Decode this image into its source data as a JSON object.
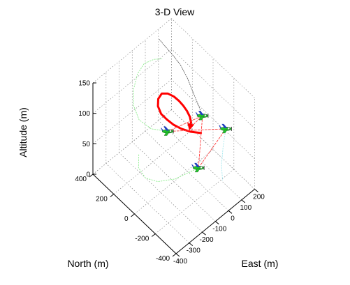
{
  "chart_data": {
    "type": "line",
    "title": "3-D View",
    "xlabel": "North (m)",
    "ylabel": "East (m)",
    "zlabel": "Altitude (m)",
    "xlim": [
      -400,
      400
    ],
    "ylim": [
      -400,
      200
    ],
    "zlim": [
      0,
      150
    ],
    "xticks": [
      "400",
      "200",
      "0",
      "-200",
      "-400"
    ],
    "xtick_values": [
      400,
      200,
      0,
      -200,
      -400
    ],
    "yticks": [
      "-400",
      "-300",
      "-200",
      "-100",
      "0",
      "100",
      "200"
    ],
    "ytick_values": [
      -400,
      -300,
      -200,
      -100,
      0,
      100,
      200
    ],
    "zticks": [
      "0",
      "50",
      "100",
      "150"
    ],
    "ztick_values": [
      0,
      50,
      100,
      150
    ],
    "grid": true,
    "colors": {
      "lead": "#ff0000",
      "formation": "#ff3b3b",
      "green_trail": "#90ee90",
      "black_trail": "#555555",
      "cyan_trail": "#a8e8ee",
      "aircraft_body": "#22c22c",
      "aircraft_accent": "#1f3fbf"
    },
    "series": [
      {
        "role": "lead",
        "points": [
          [
            -160,
            -20,
            92
          ],
          [
            -110,
            -60,
            93
          ],
          [
            -60,
            -90,
            95
          ],
          [
            -10,
            -110,
            97
          ],
          [
            40,
            -120,
            99
          ],
          [
            90,
            -125,
            101
          ],
          [
            140,
            -110,
            103
          ],
          [
            175,
            -80,
            104
          ],
          [
            185,
            -45,
            105
          ],
          [
            165,
            -15,
            103
          ],
          [
            130,
            5,
            100
          ],
          [
            95,
            15,
            97
          ],
          [
            60,
            20,
            94
          ],
          [
            25,
            20,
            91
          ],
          [
            -10,
            15,
            88
          ],
          [
            -40,
            0,
            86
          ],
          [
            -60,
            -25,
            85
          ]
        ]
      },
      {
        "role": "formation",
        "points": [
          [
            -30,
            -170,
            100
          ],
          [
            -100,
            40,
            100
          ],
          [
            -200,
            -70,
            50
          ],
          [
            -110,
            210,
            50
          ],
          [
            -30,
            -170,
            100
          ]
        ]
      },
      {
        "role": "formation-arrow",
        "points": [
          [
            -100,
            40,
            100
          ],
          [
            -60,
            -25,
            85
          ]
        ]
      },
      {
        "role": "green-trail",
        "points": [
          [
            -30,
            -170,
            100
          ],
          [
            40,
            -240,
            105
          ],
          [
            120,
            -270,
            112
          ],
          [
            200,
            -250,
            120
          ],
          [
            260,
            -200,
            128
          ],
          [
            300,
            -140,
            135
          ],
          [
            310,
            -80,
            140
          ],
          [
            280,
            -30,
            143
          ],
          [
            240,
            0,
            145
          ]
        ]
      },
      {
        "role": "green-trail-low",
        "points": [
          [
            -200,
            -70,
            50
          ],
          [
            -140,
            -200,
            45
          ],
          [
            -60,
            -270,
            40
          ],
          [
            20,
            -300,
            38
          ],
          [
            100,
            -290,
            40
          ],
          [
            160,
            -240,
            45
          ]
        ]
      },
      {
        "role": "black-trail",
        "points": [
          [
            -100,
            40,
            100
          ],
          [
            -40,
            60,
            102
          ],
          [
            40,
            80,
            108
          ],
          [
            120,
            100,
            115
          ],
          [
            200,
            110,
            122
          ],
          [
            260,
            100,
            130
          ],
          [
            310,
            80,
            140
          ],
          [
            340,
            60,
            150
          ]
        ]
      },
      {
        "role": "cyan-trail",
        "points": [
          [
            -110,
            210,
            50
          ],
          [
            -160,
            150,
            40
          ],
          [
            -220,
            90,
            30
          ],
          [
            -280,
            50,
            22
          ]
        ]
      }
    ],
    "aircraft": [
      {
        "north": -30,
        "east": -170,
        "alt": 100
      },
      {
        "north": -100,
        "east": 40,
        "alt": 100
      },
      {
        "north": -200,
        "east": -70,
        "alt": 50
      },
      {
        "north": -110,
        "east": 210,
        "alt": 50
      }
    ]
  }
}
